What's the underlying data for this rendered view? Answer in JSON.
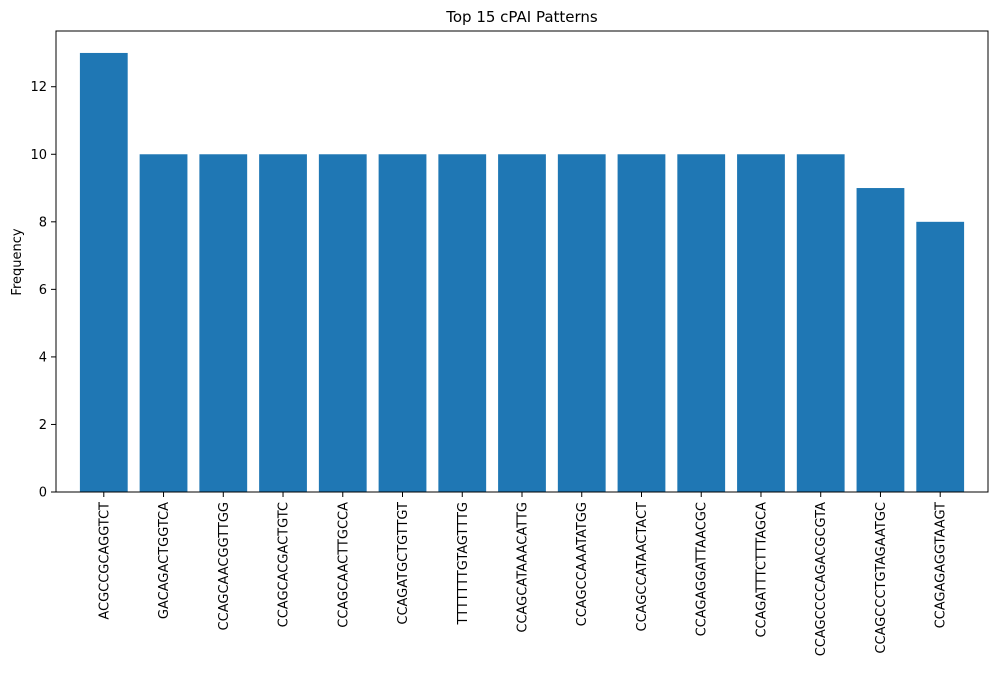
{
  "chart_data": {
    "type": "bar",
    "title": "Top 15 cPAI Patterns",
    "xlabel": "",
    "ylabel": "Frequency",
    "ylim": [
      0,
      13.65
    ],
    "yticks": [
      0,
      2,
      4,
      6,
      8,
      10,
      12
    ],
    "bar_color": "#1f77b4",
    "grid": false,
    "categories": [
      "ACGCCGCAGGTCT",
      "GACAGACTGGTCA",
      "CCAGCAACGGTTGG",
      "CCAGCACGACTGTC",
      "CCAGCAACTTGCCA",
      "CCAGATGCTGTTGT",
      "TTTTTTTGTAGTTTG",
      "CCAGCATAAACATTG",
      "CCAGCCAAATATGG",
      "CCAGCCATAACTACT",
      "CCAGAGGATTAACGC",
      "CCAGATTTCTTTAGCA",
      "CCAGCCCCAGACGCGTA",
      "CCAGCCCTGTAGAATGC",
      "CCAGAGAGGTAAGT"
    ],
    "values": [
      13,
      10,
      10,
      10,
      10,
      10,
      10,
      10,
      10,
      10,
      10,
      10,
      10,
      9,
      8
    ]
  }
}
